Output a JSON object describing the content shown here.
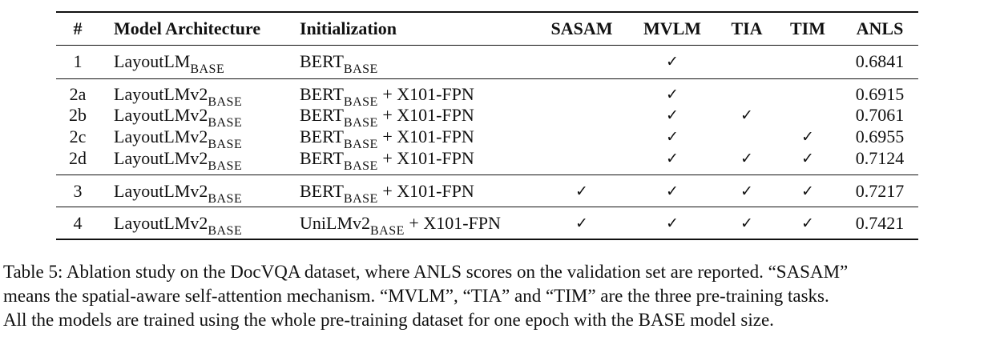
{
  "table": {
    "headers": {
      "num": "#",
      "model": "Model Architecture",
      "init": "Initialization",
      "sasam": "SASAM",
      "mvlm": "MVLM",
      "tia": "TIA",
      "tim": "TIM",
      "anls": "ANLS"
    },
    "check_symbol": "✓",
    "rows": [
      {
        "num": "1",
        "model": "LayoutLM",
        "model_sub": "BASE",
        "init": "BERT",
        "init_sub": "BASE",
        "init_rest": "",
        "sasam": "",
        "mvlm": "✓",
        "tia": "",
        "tim": "",
        "anls": "0.6841"
      },
      {
        "num": "2a",
        "model": "LayoutLMv2",
        "model_sub": "BASE",
        "init": "BERT",
        "init_sub": "BASE",
        "init_rest": " + X101-FPN",
        "sasam": "",
        "mvlm": "✓",
        "tia": "",
        "tim": "",
        "anls": "0.6915"
      },
      {
        "num": "2b",
        "model": "LayoutLMv2",
        "model_sub": "BASE",
        "init": "BERT",
        "init_sub": "BASE",
        "init_rest": " + X101-FPN",
        "sasam": "",
        "mvlm": "✓",
        "tia": "✓",
        "tim": "",
        "anls": "0.7061"
      },
      {
        "num": "2c",
        "model": "LayoutLMv2",
        "model_sub": "BASE",
        "init": "BERT",
        "init_sub": "BASE",
        "init_rest": " + X101-FPN",
        "sasam": "",
        "mvlm": "✓",
        "tia": "",
        "tim": "✓",
        "anls": "0.6955"
      },
      {
        "num": "2d",
        "model": "LayoutLMv2",
        "model_sub": "BASE",
        "init": "BERT",
        "init_sub": "BASE",
        "init_rest": " + X101-FPN",
        "sasam": "",
        "mvlm": "✓",
        "tia": "✓",
        "tim": "✓",
        "anls": "0.7124"
      },
      {
        "num": "3",
        "model": "LayoutLMv2",
        "model_sub": "BASE",
        "init": "BERT",
        "init_sub": "BASE",
        "init_rest": " + X101-FPN",
        "sasam": "✓",
        "mvlm": "✓",
        "tia": "✓",
        "tim": "✓",
        "anls": "0.7217"
      },
      {
        "num": "4",
        "model": "LayoutLMv2",
        "model_sub": "BASE",
        "init": "UniLMv2",
        "init_sub": "BASE",
        "init_rest": " + X101-FPN",
        "sasam": "✓",
        "mvlm": "✓",
        "tia": "✓",
        "tim": "✓",
        "anls": "0.7421"
      }
    ]
  },
  "caption": {
    "line1": "Table 5: Ablation study on the DocVQA dataset, where ANLS scores on the validation set are reported. “SASAM”",
    "line2": "means the spatial-aware self-attention mechanism. “MVLM”, “TIA” and “TIM” are the three pre-training tasks.",
    "line3": "All the models are trained using the whole pre-training dataset for one epoch with the BASE model size."
  }
}
